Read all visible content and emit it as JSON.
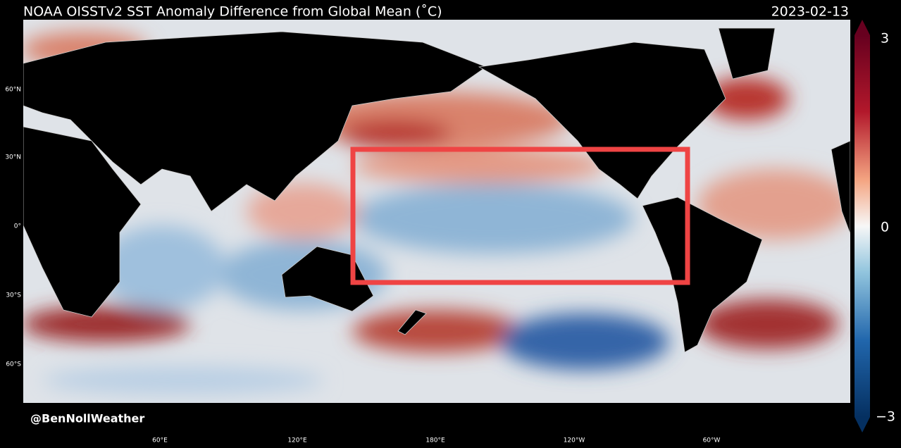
{
  "header": {
    "title": "NOAA OISSTv2 SST Anomaly Difference from Global Mean (˚C)",
    "date": "2023-02-13"
  },
  "map": {
    "lat_labels": [
      "60°N",
      "30°N",
      "0°",
      "30°S",
      "60°S"
    ],
    "lon_labels": [
      "60°E",
      "120°E",
      "180°E",
      "120°W",
      "60°W"
    ],
    "watermark": "@BenNollWeather"
  },
  "colorbar": {
    "labels": [
      "3",
      "0",
      "−3"
    ]
  }
}
